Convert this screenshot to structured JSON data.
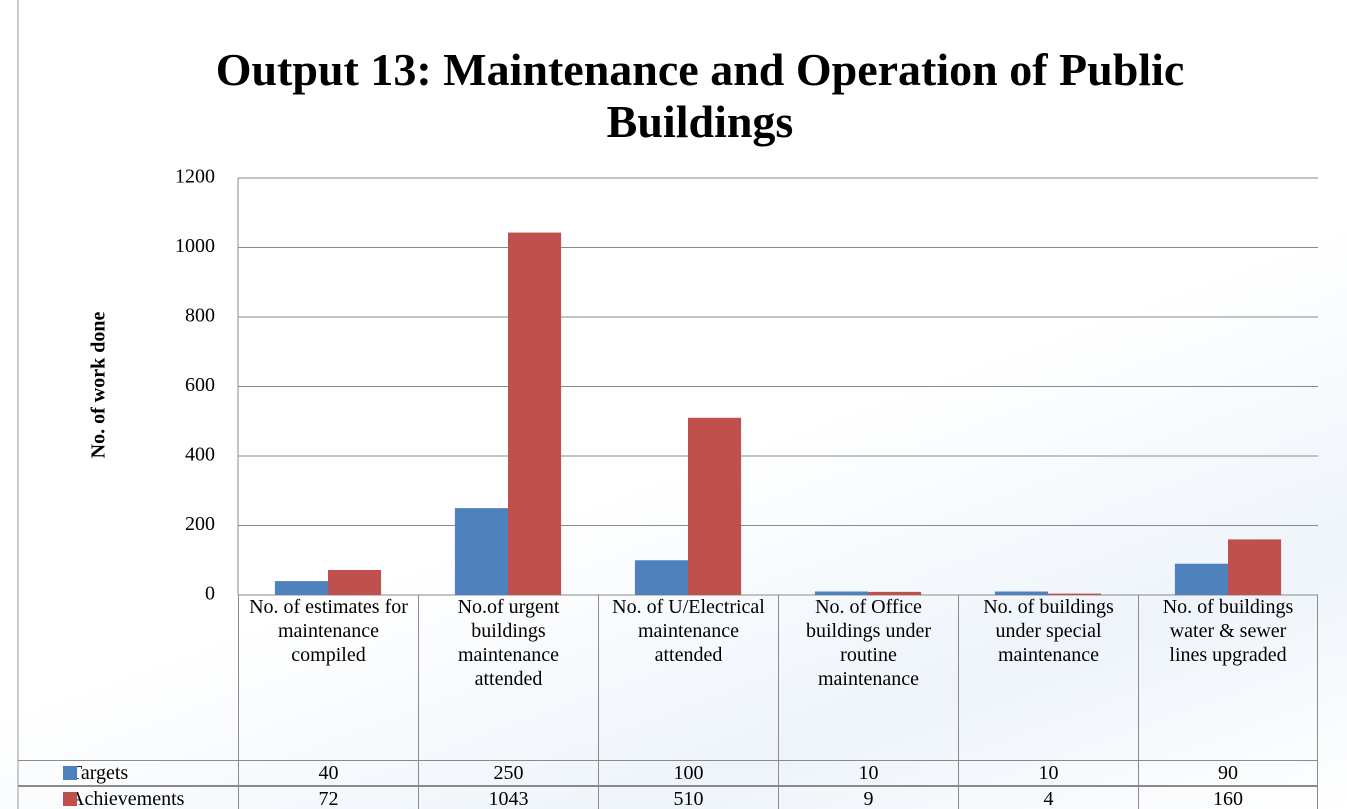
{
  "chart_data": {
    "type": "bar",
    "title": "Output 13: Maintenance and Operation of Public Buildings",
    "y_label": "No. of work done",
    "categories": [
      "No. of estimates for maintenance compiled",
      "No.of urgent buildings maintenance attended",
      "No. of U/Electrical maintenance attended",
      "No. of Office buildings under routine maintenance",
      "No. of buildings under special maintenance",
      "No. of buildings water & sewer lines upgraded"
    ],
    "series": [
      {
        "name": "Targets",
        "color": "#4f81bd",
        "values": [
          40,
          250,
          100,
          10,
          10,
          90
        ]
      },
      {
        "name": "Achievements",
        "color": "#c0504d",
        "values": [
          72,
          1043,
          510,
          9,
          4,
          160
        ]
      }
    ],
    "ylim": [
      0,
      1200
    ],
    "yticks": [
      0,
      200,
      400,
      600,
      800,
      1000,
      1200
    ],
    "grid": true
  }
}
